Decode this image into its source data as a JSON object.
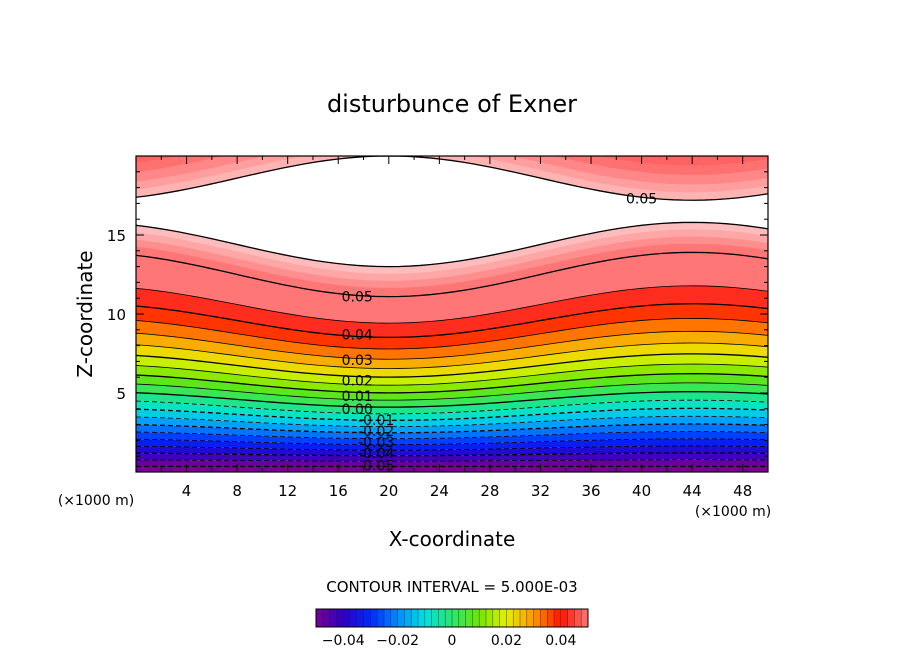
{
  "chart_data": {
    "type": "contour",
    "title": "disturbunce of Exner",
    "xlabel": "X-coordinate",
    "ylabel": "Z-coordinate",
    "x_unit": "(×1000 m)",
    "y_unit": "(×1000 m)",
    "xlim": [
      0,
      50
    ],
    "ylim": [
      0,
      20
    ],
    "x_ticks": [
      "4",
      "8",
      "12",
      "16",
      "20",
      "24",
      "28",
      "32",
      "36",
      "40",
      "44",
      "48"
    ],
    "y_ticks": [
      "5",
      "10",
      "15"
    ],
    "contour_interval_label": "CONTOUR INTERVAL = 5.000E-03",
    "contour_interval": 0.005,
    "value_range": [
      -0.05,
      0.05
    ],
    "contour_labels": [
      {
        "text": "0.05",
        "x": 40,
        "y": 17.3
      },
      {
        "text": "0.05",
        "x": 17.5,
        "y": 11.1
      },
      {
        "text": "0.04",
        "x": 17.5,
        "y": 8.7
      },
      {
        "text": "0.03",
        "x": 17.5,
        "y": 7.1
      },
      {
        "text": "0.02",
        "x": 17.5,
        "y": 5.8
      },
      {
        "text": "0.01",
        "x": 17.5,
        "y": 4.8
      },
      {
        "text": "0.00",
        "x": 17.5,
        "y": 4.0
      },
      {
        "text": "-0.01",
        "x": 19,
        "y": 3.3
      },
      {
        "text": "-0.02",
        "x": 19,
        "y": 2.6
      },
      {
        "text": "-0.03",
        "x": 19,
        "y": 1.9
      },
      {
        "text": "-0.04",
        "x": 19,
        "y": 1.2
      },
      {
        "text": "-0.05",
        "x": 19,
        "y": 0.4
      }
    ],
    "colorbar": {
      "tick_labels": [
        "−0.04",
        "−0.02",
        "0",
        "0.02",
        "0.04"
      ],
      "tick_values": [
        -0.04,
        -0.02,
        0,
        0.02,
        0.04
      ],
      "range": [
        -0.05,
        0.05
      ]
    },
    "field_description": {
      "lower_band_top_left_y": 13.2,
      "lower_band_min_y": 11.1,
      "lower_band_min_x": 20,
      "lower_band_max_y": 13.9,
      "lower_band_max_x": 44,
      "upper_band_bottom_left_y": 17.7,
      "upper_band_max_y": 20,
      "upper_band_max_x": 20,
      "upper_band_min_y": 17.2,
      "upper_band_min_x": 44
    }
  }
}
